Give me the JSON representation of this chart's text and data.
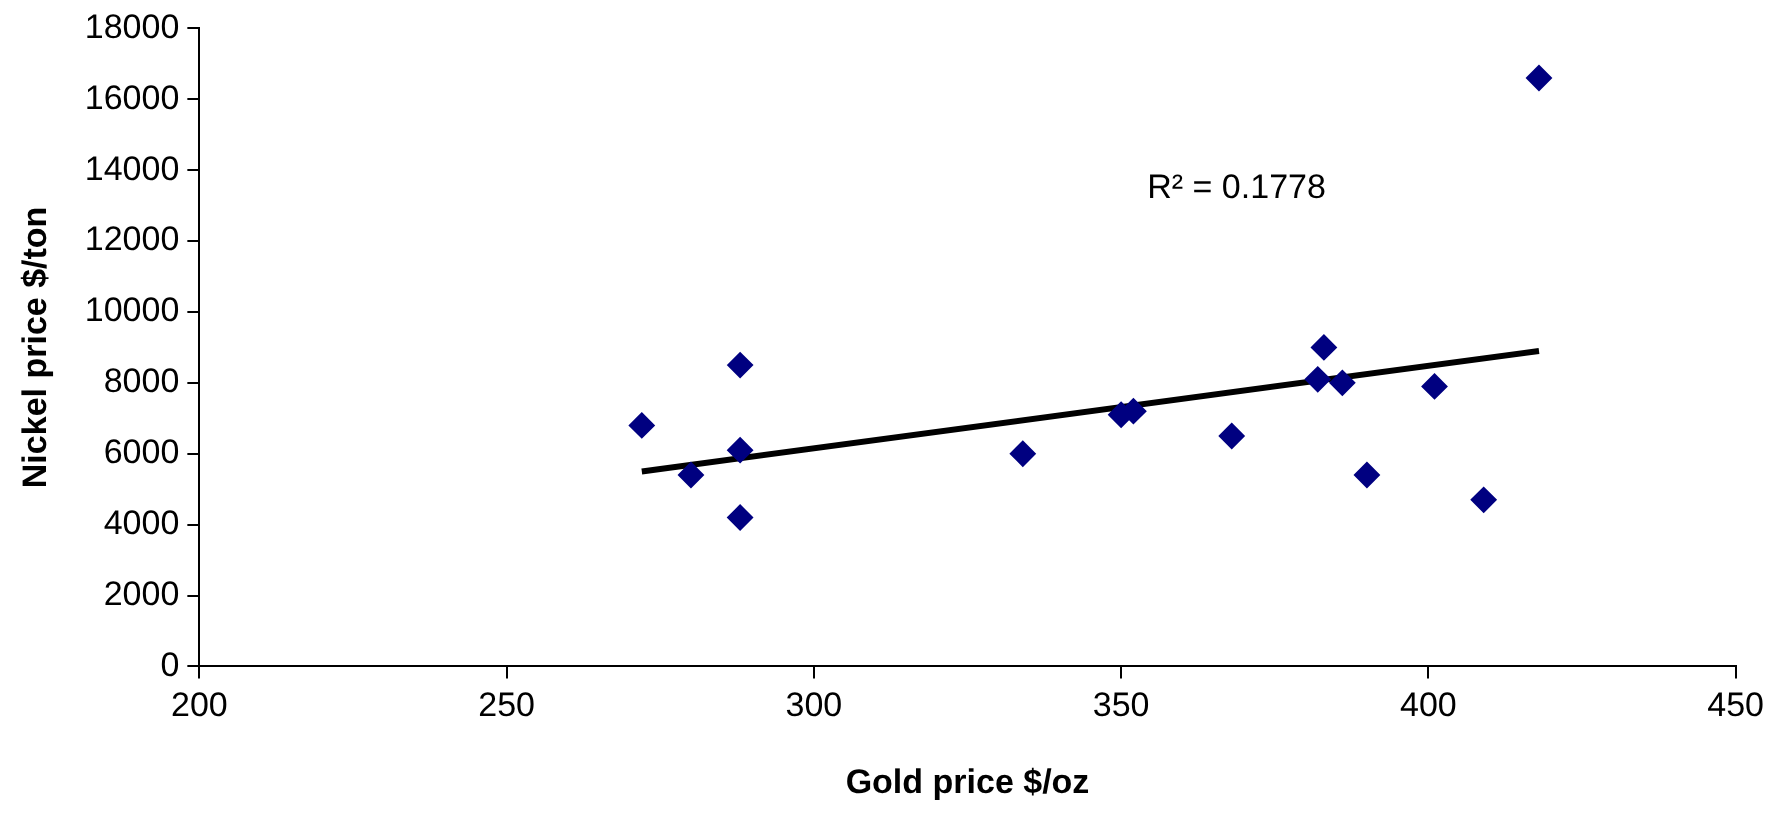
{
  "chart_data": {
    "type": "scatter",
    "xlabel": "Gold price $/oz",
    "ylabel": "Nickel price $/ton",
    "xlim": [
      200,
      450
    ],
    "xticks": [
      200,
      250,
      300,
      350,
      400,
      450
    ],
    "ylim": [
      0,
      18000
    ],
    "yticks": [
      0,
      2000,
      4000,
      6000,
      8000,
      10000,
      12000,
      14000,
      16000,
      18000
    ],
    "grid": false,
    "legend": false,
    "marker": "diamond",
    "annotations": [
      "R² = 0.1778"
    ],
    "series": [
      {
        "color": "#000080",
        "x": [
          272,
          280,
          288,
          288,
          288,
          334,
          350,
          352,
          368,
          383,
          382,
          386,
          390,
          401,
          409,
          418
        ],
        "values": [
          6800,
          5400,
          8500,
          6100,
          4200,
          6000,
          7100,
          7200,
          6500,
          9000,
          8100,
          8000,
          5400,
          7900,
          4700,
          16600
        ]
      },
      {
        "type": "line",
        "color": "#000000",
        "marker": "none",
        "x": [
          272,
          418
        ],
        "values": [
          5500,
          8900
        ]
      }
    ]
  }
}
